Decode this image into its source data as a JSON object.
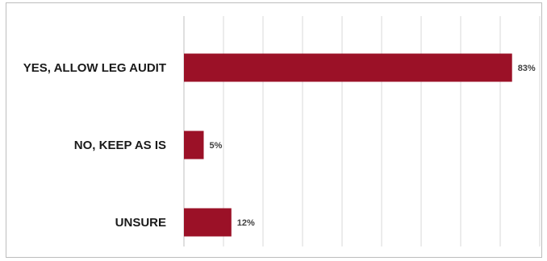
{
  "chart_data": {
    "type": "bar",
    "orientation": "horizontal",
    "categories": [
      "YES, ALLOW LEG AUDIT",
      "NO, KEEP AS IS",
      "UNSURE"
    ],
    "values": [
      83,
      5,
      12
    ],
    "value_labels": [
      "83%",
      "5%",
      "12%"
    ],
    "xlim": [
      0,
      90
    ],
    "grid": true,
    "legend": "none",
    "bar_color": "#9b1127"
  }
}
